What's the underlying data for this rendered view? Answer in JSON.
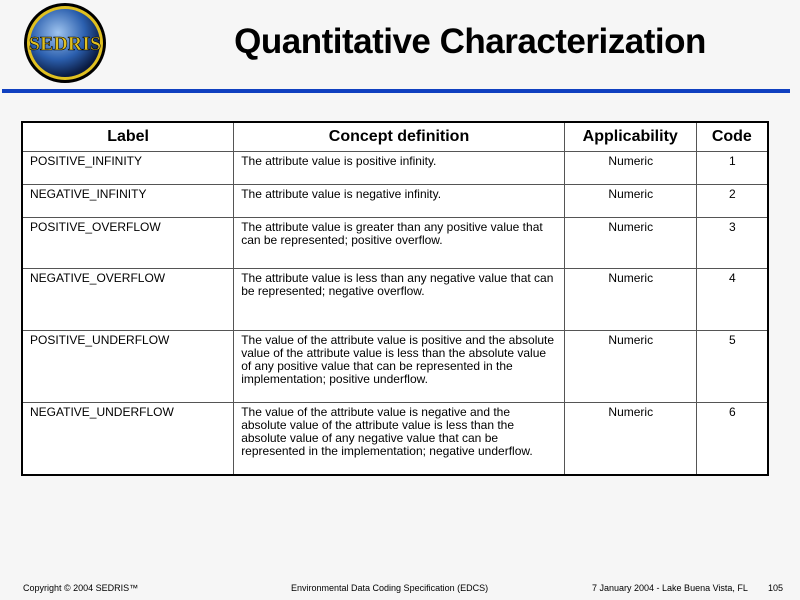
{
  "header": {
    "title": "Quantitative Characterization",
    "logo_text": "SEDRIS",
    "accent": "#1040c0"
  },
  "table": {
    "columns": [
      "Label",
      "Concept definition",
      "Applicability",
      "Code"
    ],
    "rows": [
      {
        "label": "POSITIVE_INFINITY",
        "definition": "The attribute value is positive infinity.",
        "applicability": "Numeric",
        "code": "1"
      },
      {
        "label": "NEGATIVE_INFINITY",
        "definition": "The attribute value is negative infinity.",
        "applicability": "Numeric",
        "code": "2"
      },
      {
        "label": "POSITIVE_OVERFLOW",
        "definition": "The attribute value is greater than any positive value that can be represented; positive overflow.",
        "applicability": "Numeric",
        "code": "3"
      },
      {
        "label": "NEGATIVE_OVERFLOW",
        "definition": "The attribute value is less than any negative value that can be represented; negative overflow.",
        "applicability": "Numeric",
        "code": "4"
      },
      {
        "label": "POSITIVE_UNDERFLOW",
        "definition": "The value of the attribute value is positive and the absolute value of the attribute value is less than the absolute value of any positive value that can be represented in the implementation; positive underflow.",
        "applicability": "Numeric",
        "code": "5"
      },
      {
        "label": "NEGATIVE_UNDERFLOW",
        "definition": "The value of the attribute value is negative and the absolute value of the attribute value is less than the absolute value of any negative value that can be represented in the implementation; negative underflow.",
        "applicability": "Numeric",
        "code": "6"
      }
    ]
  },
  "footer": {
    "copyright": "Copyright © 2004 SEDRIS™",
    "doc": "Environmental Data Coding Specification (EDCS)",
    "date": "7 January 2004 - Lake Buena Vista, FL",
    "page": "105"
  }
}
